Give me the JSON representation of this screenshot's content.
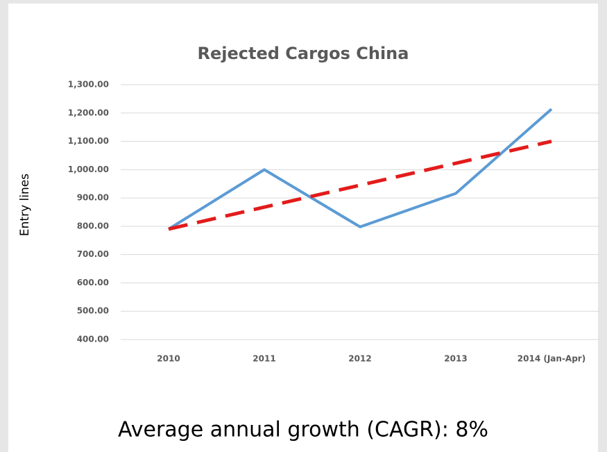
{
  "chart_data": {
    "type": "line",
    "title": "Rejected Cargos China",
    "ylabel": "Entry lines",
    "annotation": "Average annual growth (CAGR): 8%",
    "categories": [
      "2010",
      "2011",
      "2012",
      "2013",
      "2014 (Jan-Apr)"
    ],
    "series": [
      {
        "color": "#5b9bd5",
        "values": [
          790,
          1000,
          798,
          916,
          1214
        ],
        "dashed": false
      },
      {
        "color": "#e31b1b",
        "values": [
          790,
          867.5,
          945,
          1022.5,
          1100
        ],
        "dashed": true
      }
    ],
    "ylim": [
      400,
      1300
    ],
    "yticks": [
      {
        "value": 400,
        "label": "400.00"
      },
      {
        "value": 500,
        "label": "500.00"
      },
      {
        "value": 600,
        "label": "600.00"
      },
      {
        "value": 700,
        "label": "700.00"
      },
      {
        "value": 800,
        "label": "800.00"
      },
      {
        "value": 900,
        "label": "900.00"
      },
      {
        "value": 1000,
        "label": "1,000.00"
      },
      {
        "value": 1100,
        "label": "1,100.00"
      },
      {
        "value": 1200,
        "label": "1,200.00"
      },
      {
        "value": 1300,
        "label": "1,300.00"
      }
    ],
    "grid": true
  }
}
